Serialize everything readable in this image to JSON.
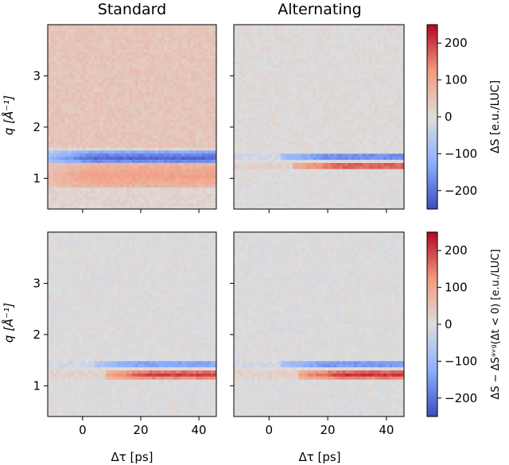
{
  "chart_data": {
    "type": "heatmap",
    "panels": [
      {
        "title": "Standard",
        "row": 0,
        "col": 0,
        "features": [
          {
            "kind": "background",
            "value": 45
          },
          {
            "kind": "band",
            "q_center": 1.4,
            "q_halfwidth": 0.12,
            "value": -240,
            "t_start": -12
          },
          {
            "kind": "band",
            "q_center": 1.05,
            "q_halfwidth": 0.22,
            "value": 95,
            "t_start": -12
          }
        ]
      },
      {
        "title": "Alternating",
        "row": 0,
        "col": 1,
        "features": [
          {
            "kind": "background",
            "value": 5
          },
          {
            "kind": "band",
            "q_center": 1.42,
            "q_halfwidth": 0.07,
            "value": -200,
            "t_start": 4
          },
          {
            "kind": "band",
            "q_center": 1.24,
            "q_halfwidth": 0.07,
            "value": 200,
            "t_start": 8
          }
        ]
      },
      {
        "title": "",
        "row": 1,
        "col": 0,
        "features": [
          {
            "kind": "background",
            "value": 0
          },
          {
            "kind": "band",
            "q_center": 1.42,
            "q_halfwidth": 0.06,
            "value": -170,
            "t_start": 4
          },
          {
            "kind": "band",
            "q_center": 1.22,
            "q_halfwidth": 0.08,
            "value": 210,
            "t_start": 8
          }
        ]
      },
      {
        "title": "",
        "row": 1,
        "col": 1,
        "features": [
          {
            "kind": "background",
            "value": 0
          },
          {
            "kind": "band",
            "q_center": 1.42,
            "q_halfwidth": 0.06,
            "value": -190,
            "t_start": 4
          },
          {
            "kind": "band",
            "q_center": 1.22,
            "q_halfwidth": 0.08,
            "value": 220,
            "t_start": 10
          }
        ]
      }
    ],
    "x": {
      "label": "Δτ [ps]",
      "lim": [
        -12,
        46
      ],
      "ticks": [
        0,
        20,
        40
      ]
    },
    "y": {
      "label": "q [Å⁻¹]",
      "lim": [
        0.4,
        4.0
      ],
      "ticks": [
        1,
        2,
        3
      ]
    },
    "colorbars": [
      {
        "label": "ΔS [e.u./LUC]",
        "lim": [
          -250,
          250
        ],
        "ticks": [
          200,
          100,
          0,
          -100,
          -200
        ]
      },
      {
        "label": "ΔS − ΔSᵃᵛᵍ(Δt < 0) [e.u./LUC]",
        "lim": [
          -250,
          250
        ],
        "ticks": [
          200,
          100,
          0,
          -100,
          -200
        ]
      }
    ],
    "colormap": "coolwarm"
  }
}
